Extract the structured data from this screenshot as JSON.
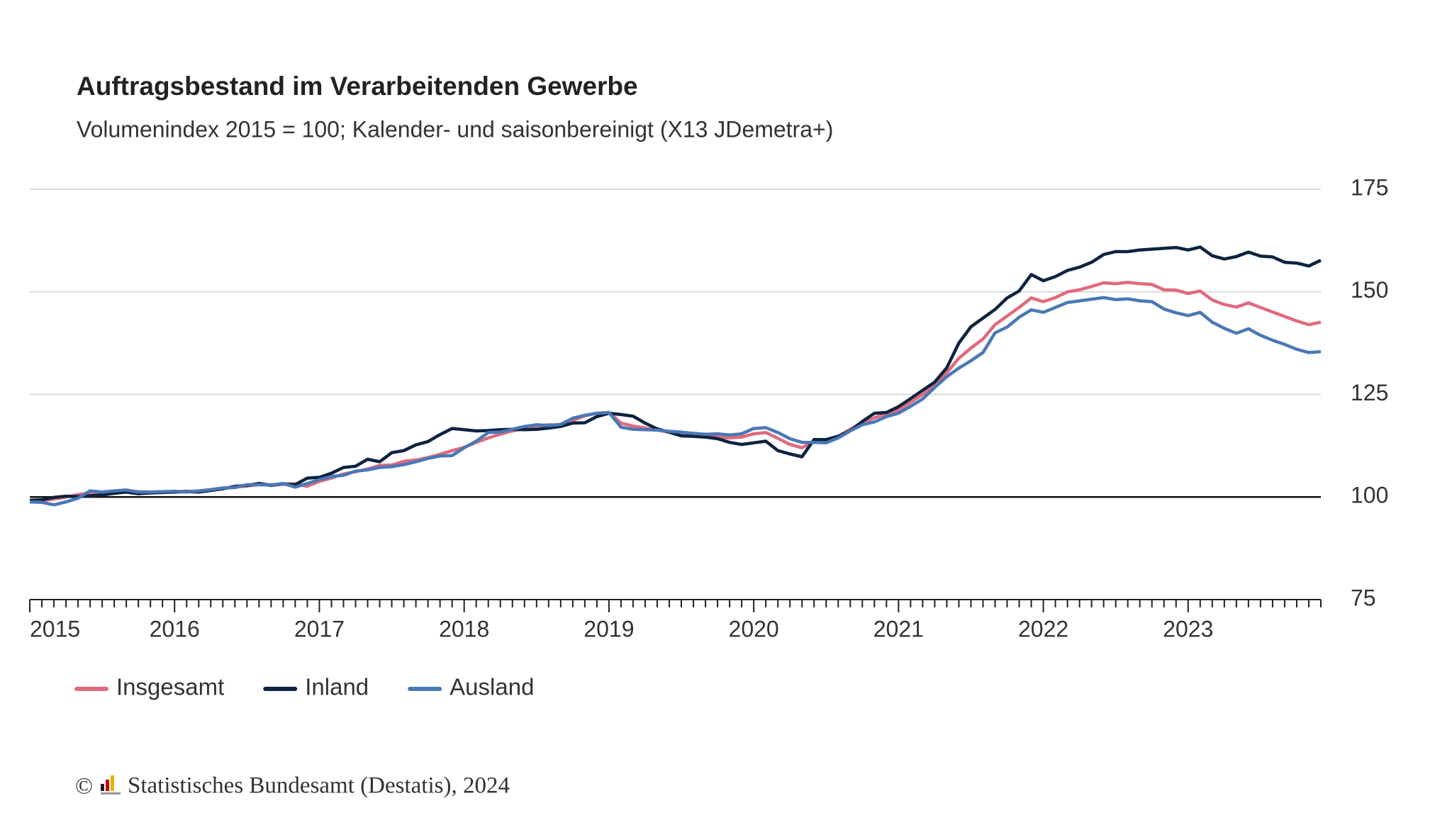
{
  "chart_data": {
    "type": "line",
    "title": "Auftragsbestand im Verarbeitenden Gewerbe",
    "subtitle": "Volumenindex 2015 = 100; Kalender- und saisonbereinigt (X13 JDemetra+)",
    "categories": [
      "2015",
      null,
      null,
      null,
      null,
      null,
      null,
      null,
      null,
      null,
      null,
      null,
      "2016",
      null,
      null,
      null,
      null,
      null,
      null,
      null,
      null,
      null,
      null,
      null,
      "2017",
      null,
      null,
      null,
      null,
      null,
      null,
      null,
      null,
      null,
      null,
      null,
      "2018",
      null,
      null,
      null,
      null,
      null,
      null,
      null,
      null,
      null,
      null,
      null,
      "2019",
      null,
      null,
      null,
      null,
      null,
      null,
      null,
      null,
      null,
      null,
      null,
      "2020",
      null,
      null,
      null,
      null,
      null,
      null,
      null,
      null,
      null,
      null,
      null,
      "2021",
      null,
      null,
      null,
      null,
      null,
      null,
      null,
      null,
      null,
      null,
      null,
      "2022",
      null,
      null,
      null,
      null,
      null,
      null,
      null,
      null,
      null,
      null,
      null,
      "2023",
      null,
      null,
      null,
      null,
      null,
      null,
      null,
      null,
      null,
      null,
      null
    ],
    "series": [
      {
        "name": "Insgesamt",
        "color": "#e06a7e",
        "values": [
          98.9,
          99.1,
          99.5,
          100.0,
          100.6,
          101.0,
          101.2,
          101.4,
          101.6,
          101.3,
          101.2,
          101.3,
          101.3,
          101.4,
          101.4,
          101.7,
          102.1,
          102.4,
          102.7,
          103.0,
          103.0,
          103.1,
          103.2,
          102.6,
          103.8,
          104.6,
          105.6,
          106.2,
          106.8,
          107.7,
          107.8,
          108.7,
          109.0,
          109.6,
          110.4,
          111.3,
          112.1,
          113.3,
          114.4,
          115.3,
          116.1,
          116.7,
          117.3,
          117.6,
          117.5,
          118.6,
          119.8,
          120.4,
          120.6,
          118.0,
          117.3,
          116.8,
          116.3,
          115.8,
          115.3,
          115.1,
          114.8,
          114.6,
          114.4,
          114.6,
          115.4,
          115.7,
          114.3,
          112.8,
          112.0,
          113.6,
          113.5,
          114.8,
          116.5,
          118.0,
          119.3,
          120.3,
          121.2,
          123.1,
          125.0,
          127.3,
          130.3,
          133.8,
          136.3,
          138.5,
          142.0,
          144.1,
          146.2,
          148.5,
          147.6,
          148.6,
          150.0,
          150.5,
          151.3,
          152.2,
          152.0,
          152.3,
          152.0,
          151.8,
          150.5,
          150.4,
          149.6,
          150.2,
          148.0,
          146.9,
          146.3,
          147.3,
          146.2,
          145.1,
          144.0,
          142.9,
          142.0,
          142.6
        ]
      },
      {
        "name": "Inland",
        "color": "#0c2340",
        "values": [
          99.2,
          99.3,
          99.9,
          100.2,
          100.1,
          100.3,
          100.5,
          100.9,
          101.2,
          100.8,
          101.0,
          101.1,
          101.2,
          101.3,
          101.2,
          101.6,
          102.0,
          102.6,
          102.8,
          103.3,
          102.8,
          103.2,
          103.0,
          104.6,
          104.8,
          105.8,
          107.2,
          107.5,
          109.2,
          108.6,
          110.8,
          111.3,
          112.7,
          113.5,
          115.2,
          116.7,
          116.4,
          116.1,
          116.2,
          116.4,
          116.5,
          116.4,
          116.5,
          116.8,
          117.2,
          118.0,
          118.1,
          119.6,
          120.4,
          120.1,
          119.7,
          118.0,
          116.6,
          115.8,
          114.9,
          114.8,
          114.6,
          114.2,
          113.3,
          112.8,
          113.2,
          113.6,
          111.3,
          110.5,
          109.8,
          114.0,
          114.0,
          114.8,
          116.2,
          118.4,
          120.4,
          120.6,
          122.0,
          124.0,
          126.0,
          128.0,
          131.5,
          137.5,
          141.5,
          143.6,
          145.7,
          148.5,
          150.2,
          154.2,
          152.7,
          153.7,
          155.2,
          156.0,
          157.2,
          159.1,
          159.8,
          159.8,
          160.2,
          160.4,
          160.6,
          160.8,
          160.2,
          160.9,
          158.8,
          158.0,
          158.6,
          159.7,
          158.7,
          158.5,
          157.2,
          157.0,
          156.3,
          157.7
        ]
      },
      {
        "name": "Ausland",
        "color": "#4a78b5",
        "values": [
          98.8,
          98.7,
          98.1,
          98.8,
          99.7,
          101.5,
          101.2,
          101.5,
          101.7,
          101.2,
          101.2,
          101.3,
          101.4,
          101.2,
          101.5,
          101.8,
          102.2,
          102.3,
          103.0,
          103.0,
          102.9,
          103.3,
          102.4,
          103.3,
          104.2,
          105.0,
          105.3,
          106.3,
          106.6,
          107.2,
          107.4,
          107.9,
          108.6,
          109.4,
          110.0,
          110.1,
          112.0,
          113.6,
          115.7,
          115.8,
          116.5,
          117.2,
          117.6,
          117.4,
          117.7,
          119.2,
          119.9,
          120.4,
          120.6,
          117.0,
          116.5,
          116.4,
          116.3,
          116.0,
          115.8,
          115.5,
          115.3,
          115.4,
          115.1,
          115.4,
          116.7,
          116.9,
          115.7,
          114.2,
          113.3,
          113.3,
          113.2,
          114.4,
          116.1,
          117.6,
          118.3,
          119.6,
          120.4,
          122.1,
          123.9,
          126.7,
          129.3,
          131.4,
          133.2,
          135.2,
          140.0,
          141.4,
          143.8,
          145.6,
          145.0,
          146.2,
          147.4,
          147.8,
          148.2,
          148.6,
          148.1,
          148.3,
          147.8,
          147.6,
          145.8,
          144.9,
          144.2,
          145.0,
          142.6,
          141.1,
          139.9,
          141.0,
          139.4,
          138.2,
          137.2,
          136.0,
          135.2,
          135.4
        ]
      }
    ],
    "ylim": [
      75,
      175
    ],
    "yticks": [
      75,
      100,
      125,
      150,
      175
    ],
    "baseline": 100,
    "grid": true,
    "legend": "bottom-left",
    "copyright": "©",
    "source": "Statistisches Bundesamt (Destatis), 2024"
  }
}
